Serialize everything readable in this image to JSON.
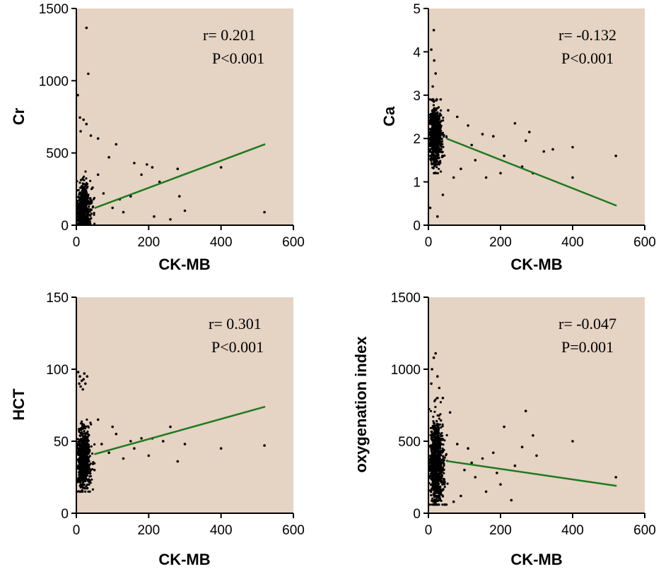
{
  "colors": {
    "plot_background": "#E5D3C3",
    "points": "#000000",
    "regression_line": "#1E7A1E",
    "axis": "#000000"
  },
  "chart_data": [
    {
      "type": "scatter",
      "xlabel": "CK-MB",
      "ylabel": "Cr",
      "xlim": [
        0,
        600
      ],
      "ylim": [
        0,
        1500
      ],
      "xticks": [
        0,
        200,
        400,
        600
      ],
      "yticks": [
        0,
        500,
        1000,
        1500
      ],
      "annotation": {
        "r": "r= 0.201",
        "p": "P<0.001"
      },
      "regression_line": {
        "x": [
          50,
          522
        ],
        "y": [
          118,
          561
        ]
      },
      "points": [
        [
          28,
          1366
        ],
        [
          33,
          1048
        ],
        [
          4,
          900
        ],
        [
          10,
          745
        ],
        [
          20,
          730
        ],
        [
          28,
          700
        ],
        [
          12,
          650
        ],
        [
          40,
          620
        ],
        [
          60,
          600
        ],
        [
          110,
          560
        ],
        [
          90,
          470
        ],
        [
          160,
          430
        ],
        [
          195,
          420
        ],
        [
          210,
          400
        ],
        [
          280,
          390
        ],
        [
          400,
          400
        ],
        [
          180,
          350
        ],
        [
          230,
          300
        ],
        [
          150,
          200
        ],
        [
          285,
          200
        ],
        [
          260,
          40
        ],
        [
          520,
          90
        ],
        [
          300,
          100
        ],
        [
          100,
          120
        ],
        [
          130,
          90
        ],
        [
          215,
          60
        ],
        [
          60,
          350
        ],
        [
          45,
          260
        ],
        [
          75,
          220
        ],
        [
          120,
          180
        ]
      ],
      "cluster": {
        "x_range": [
          2,
          50
        ],
        "y_range": [
          10,
          500
        ],
        "count": 700,
        "center_x": 16,
        "center_y": 100
      }
    },
    {
      "type": "scatter",
      "xlabel": "CK-MB",
      "ylabel": "Ca",
      "xlim": [
        0,
        600
      ],
      "ylim": [
        0,
        5
      ],
      "xticks": [
        0,
        200,
        400,
        600
      ],
      "yticks": [
        0,
        1,
        2,
        3,
        4,
        5
      ],
      "annotation": {
        "r": "r= -0.132",
        "p": "P<0.001"
      },
      "regression_line": {
        "x": [
          50,
          522
        ],
        "y": [
          2.0,
          0.45
        ]
      },
      "points": [
        [
          15,
          4.5
        ],
        [
          8,
          4.05
        ],
        [
          16,
          3.8
        ],
        [
          20,
          3.5
        ],
        [
          12,
          3.2
        ],
        [
          55,
          2.65
        ],
        [
          80,
          2.5
        ],
        [
          110,
          2.3
        ],
        [
          150,
          2.1
        ],
        [
          180,
          2.05
        ],
        [
          240,
          2.35
        ],
        [
          280,
          2.15
        ],
        [
          270,
          1.95
        ],
        [
          320,
          1.7
        ],
        [
          400,
          1.8
        ],
        [
          260,
          1.35
        ],
        [
          290,
          1.2
        ],
        [
          400,
          1.1
        ],
        [
          520,
          1.6
        ],
        [
          200,
          1.2
        ],
        [
          160,
          1.1
        ],
        [
          130,
          1.5
        ],
        [
          90,
          1.3
        ],
        [
          70,
          1.1
        ],
        [
          40,
          0.7
        ],
        [
          25,
          0.2
        ],
        [
          5,
          0.4
        ],
        [
          345,
          1.75
        ],
        [
          210,
          1.6
        ],
        [
          120,
          1.85
        ]
      ],
      "cluster": {
        "x_range": [
          2,
          50
        ],
        "y_range": [
          1.2,
          2.9
        ],
        "count": 700,
        "center_x": 16,
        "center_y": 2.05
      }
    },
    {
      "type": "scatter",
      "xlabel": "CK-MB",
      "ylabel": "HCT",
      "xlim": [
        0,
        600
      ],
      "ylim": [
        0,
        150
      ],
      "xticks": [
        0,
        200,
        400,
        600
      ],
      "yticks": [
        0,
        50,
        100,
        150
      ],
      "annotation": {
        "r": "r= 0.301",
        "p": "P<0.001"
      },
      "regression_line": {
        "x": [
          50,
          522
        ],
        "y": [
          41,
          74
        ]
      },
      "points": [
        [
          5,
          98
        ],
        [
          10,
          95
        ],
        [
          15,
          92
        ],
        [
          20,
          93
        ],
        [
          25,
          90
        ],
        [
          30,
          95
        ],
        [
          12,
          88
        ],
        [
          8,
          90
        ],
        [
          22,
          97
        ],
        [
          18,
          86
        ],
        [
          60,
          65
        ],
        [
          100,
          60
        ],
        [
          110,
          55
        ],
        [
          150,
          50
        ],
        [
          180,
          52
        ],
        [
          210,
          52
        ],
        [
          260,
          60
        ],
        [
          280,
          36
        ],
        [
          400,
          45
        ],
        [
          520,
          47
        ],
        [
          200,
          40
        ],
        [
          160,
          45
        ],
        [
          130,
          38
        ],
        [
          90,
          42
        ],
        [
          70,
          48
        ],
        [
          240,
          50
        ],
        [
          50,
          30
        ],
        [
          35,
          20
        ],
        [
          10,
          15
        ],
        [
          300,
          48
        ]
      ],
      "cluster": {
        "x_range": [
          2,
          50
        ],
        "y_range": [
          15,
          65
        ],
        "count": 700,
        "center_x": 16,
        "center_y": 38
      }
    },
    {
      "type": "scatter",
      "xlabel": "CK-MB",
      "ylabel": "oxygenation index",
      "xlim": [
        0,
        600
      ],
      "ylim": [
        0,
        1500
      ],
      "xticks": [
        0,
        200,
        400,
        600
      ],
      "yticks": [
        0,
        500,
        1000,
        1500
      ],
      "annotation": {
        "r": "r= -0.047",
        "p": "P=0.001"
      },
      "regression_line": {
        "x": [
          50,
          522
        ],
        "y": [
          363,
          190
        ]
      },
      "points": [
        [
          20,
          1110
        ],
        [
          15,
          1080
        ],
        [
          10,
          1000
        ],
        [
          25,
          950
        ],
        [
          8,
          900
        ],
        [
          30,
          870
        ],
        [
          40,
          800
        ],
        [
          60,
          700
        ],
        [
          270,
          710
        ],
        [
          400,
          500
        ],
        [
          290,
          540
        ],
        [
          210,
          600
        ],
        [
          180,
          420
        ],
        [
          150,
          380
        ],
        [
          120,
          350
        ],
        [
          100,
          300
        ],
        [
          240,
          330
        ],
        [
          230,
          90
        ],
        [
          520,
          250
        ],
        [
          200,
          200
        ],
        [
          160,
          150
        ],
        [
          130,
          250
        ],
        [
          90,
          120
        ],
        [
          70,
          80
        ],
        [
          45,
          60
        ],
        [
          300,
          400
        ],
        [
          260,
          460
        ],
        [
          110,
          450
        ],
        [
          80,
          480
        ],
        [
          190,
          280
        ]
      ],
      "cluster": {
        "x_range": [
          2,
          55
        ],
        "y_range": [
          60,
          800
        ],
        "count": 900,
        "center_x": 18,
        "center_y": 330
      }
    }
  ]
}
